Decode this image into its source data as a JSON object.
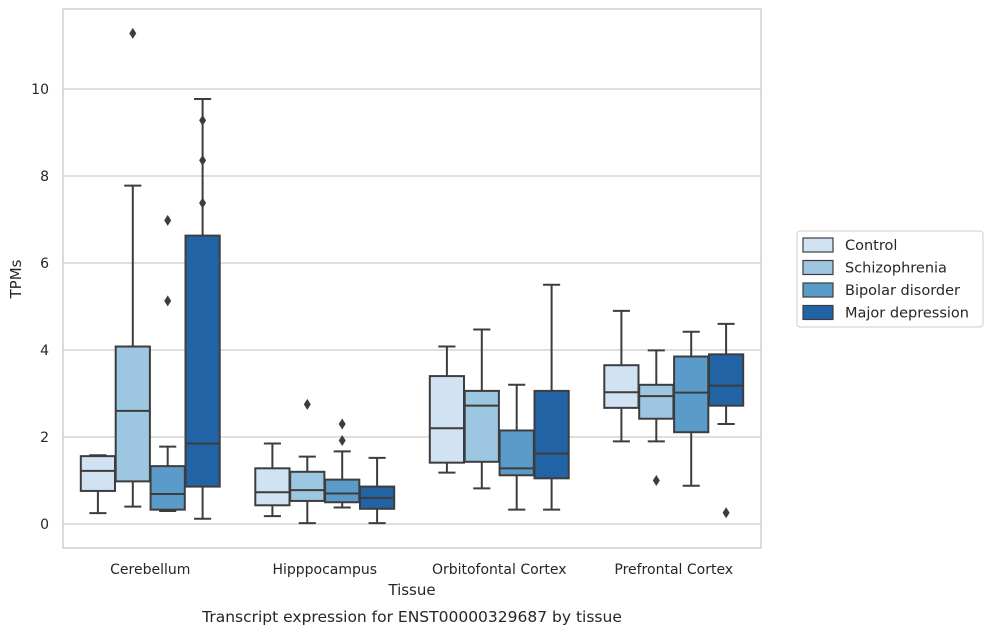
{
  "chart_data": {
    "type": "box",
    "title": "",
    "caption": "Transcript expression for ENST00000329687 by tissue",
    "xlabel": "Tissue",
    "ylabel": "TPMs",
    "ylim": [
      -0.55,
      11.8
    ],
    "yticks": [
      0,
      2,
      4,
      6,
      8,
      10
    ],
    "ytick_labels": [
      "0",
      "2",
      "4",
      "6",
      "8",
      "10"
    ],
    "grid": "horizontal",
    "legend_position": "right",
    "categories": [
      "Cerebellum",
      "Hipppocampus",
      "Orbitofontal Cortex",
      "Prefrontal Cortex"
    ],
    "series": [
      {
        "name": "Control",
        "color": "#d1e2f2",
        "boxes": [
          {
            "whislo": 0.25,
            "q1": 0.76,
            "med": 1.22,
            "q3": 1.56,
            "whishi": 1.58,
            "fliers": []
          },
          {
            "whislo": 0.18,
            "q1": 0.43,
            "med": 0.73,
            "q3": 1.28,
            "whishi": 1.85,
            "fliers": []
          },
          {
            "whislo": 1.18,
            "q1": 1.41,
            "med": 2.2,
            "q3": 3.4,
            "whishi": 4.08,
            "fliers": []
          },
          {
            "whislo": 1.9,
            "q1": 2.67,
            "med": 3.03,
            "q3": 3.65,
            "whishi": 4.9,
            "fliers": []
          }
        ]
      },
      {
        "name": "Schizophrenia",
        "color": "#9dc6e0",
        "boxes": [
          {
            "whislo": 0.4,
            "q1": 0.98,
            "med": 2.6,
            "q3": 4.08,
            "whishi": 7.78,
            "fliers": [
              11.28
            ]
          },
          {
            "whislo": 0.02,
            "q1": 0.53,
            "med": 0.78,
            "q3": 1.2,
            "whishi": 1.55,
            "fliers": [
              2.75
            ]
          },
          {
            "whislo": 0.82,
            "q1": 1.43,
            "med": 2.72,
            "q3": 3.06,
            "whishi": 4.47,
            "fliers": []
          },
          {
            "whislo": 1.9,
            "q1": 2.42,
            "med": 2.94,
            "q3": 3.2,
            "whishi": 3.99,
            "fliers": [
              1.0
            ]
          }
        ]
      },
      {
        "name": "Bipolar disorder",
        "color": "#5b9bca",
        "boxes": [
          {
            "whislo": 0.3,
            "q1": 0.33,
            "med": 0.69,
            "q3": 1.33,
            "whishi": 1.78,
            "fliers": [
              5.13,
              6.98
            ]
          },
          {
            "whislo": 0.38,
            "q1": 0.5,
            "med": 0.7,
            "q3": 1.02,
            "whishi": 1.67,
            "fliers": [
              1.92,
              2.3
            ]
          },
          {
            "whislo": 0.33,
            "q1": 1.12,
            "med": 1.28,
            "q3": 2.15,
            "whishi": 3.2,
            "fliers": []
          },
          {
            "whislo": 0.88,
            "q1": 2.11,
            "med": 3.02,
            "q3": 3.85,
            "whishi": 4.42,
            "fliers": []
          }
        ]
      },
      {
        "name": "Major depression",
        "color": "#2263a6",
        "boxes": [
          {
            "whislo": 0.12,
            "q1": 0.86,
            "med": 1.85,
            "q3": 6.63,
            "whishi": 9.77,
            "fliers": [
              7.38,
              8.36,
              9.28
            ]
          },
          {
            "whislo": 0.02,
            "q1": 0.35,
            "med": 0.6,
            "q3": 0.86,
            "whishi": 1.52,
            "fliers": []
          },
          {
            "whislo": 0.33,
            "q1": 1.05,
            "med": 1.62,
            "q3": 3.06,
            "whishi": 5.5,
            "fliers": []
          },
          {
            "whislo": 2.3,
            "q1": 2.72,
            "med": 3.18,
            "q3": 3.9,
            "whishi": 4.6,
            "fliers": [
              0.26
            ]
          }
        ]
      }
    ]
  }
}
